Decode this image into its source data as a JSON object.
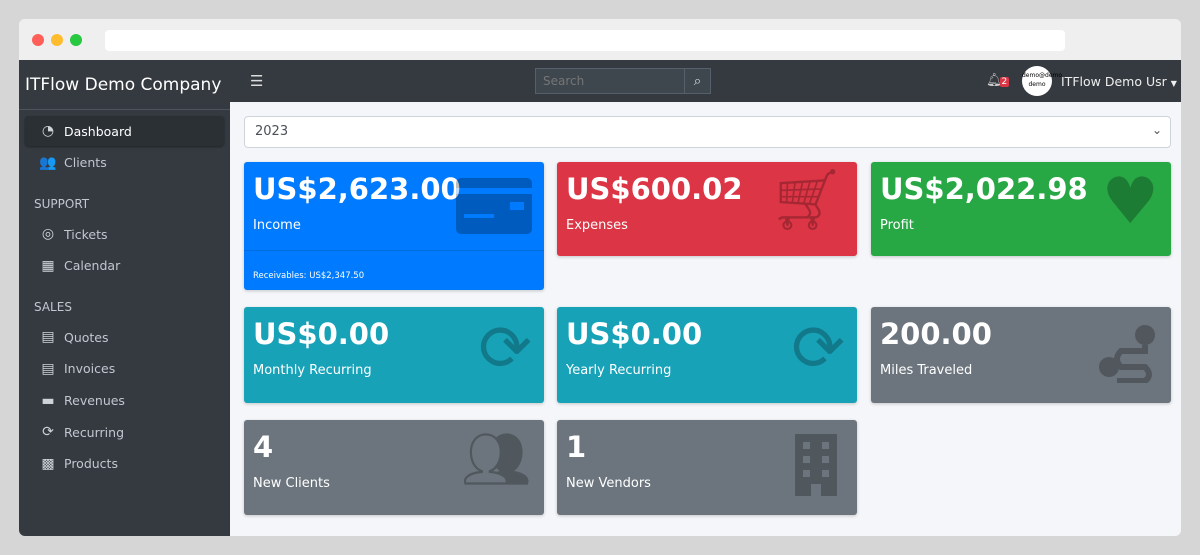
{
  "sidebar": {
    "brand": "ITFlow Demo Company",
    "items": [
      {
        "label": "Dashboard",
        "icon": "dashboard-icon"
      },
      {
        "label": "Clients",
        "icon": "users-icon"
      }
    ],
    "support_header": "SUPPORT",
    "support": [
      {
        "label": "Tickets",
        "icon": "life-ring-icon"
      },
      {
        "label": "Calendar",
        "icon": "calendar-icon"
      }
    ],
    "sales_header": "SALES",
    "sales": [
      {
        "label": "Quotes",
        "icon": "file-icon"
      },
      {
        "label": "Invoices",
        "icon": "invoice-icon"
      },
      {
        "label": "Revenues",
        "icon": "credit-card-icon"
      },
      {
        "label": "Recurring",
        "icon": "sync-icon"
      },
      {
        "label": "Products",
        "icon": "box-icon"
      }
    ]
  },
  "topbar": {
    "search_placeholder": "Search",
    "notifications": "2",
    "avatar_text": "demo@demo demo",
    "user": "ITFlow Demo Usr"
  },
  "year_select": "2023",
  "cards": [
    {
      "value": "US$2,623.00",
      "label": "Income",
      "footer": "Receivables: US$2,347.50",
      "color": "#007bff"
    },
    {
      "value": "US$600.02",
      "label": "Expenses",
      "color": "#dc3545"
    },
    {
      "value": "US$2,022.98",
      "label": "Profit",
      "color": "#28a745"
    },
    {
      "value": "US$0.00",
      "label": "Monthly Recurring",
      "color": "#17a2b8"
    },
    {
      "value": "US$0.00",
      "label": "Yearly Recurring",
      "color": "#17a2b8"
    },
    {
      "value": "200.00",
      "label": "Miles Traveled",
      "color": "#6c757d"
    },
    {
      "value": "4",
      "label": "New Clients",
      "color": "#6c757d"
    },
    {
      "value": "1",
      "label": "New Vendors",
      "color": "#6c757d"
    }
  ]
}
